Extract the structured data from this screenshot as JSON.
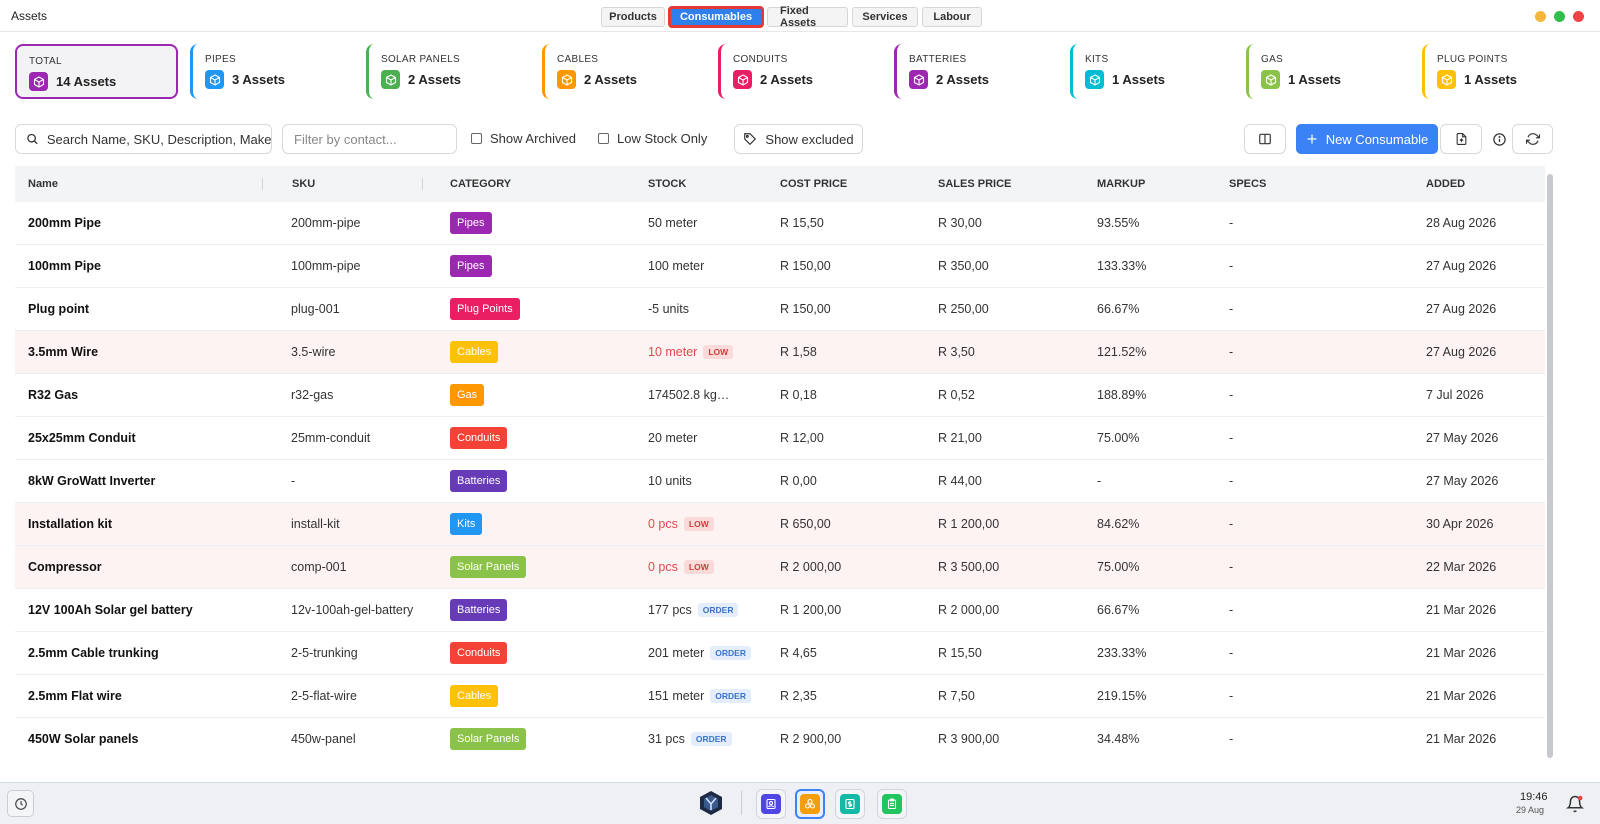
{
  "window": {
    "title": "Assets",
    "tabs": [
      {
        "label": "Products",
        "active": false
      },
      {
        "label": "Consumables",
        "active": true
      },
      {
        "label": "Fixed Assets",
        "active": false
      },
      {
        "label": "Services",
        "active": false
      },
      {
        "label": "Labour",
        "active": false
      }
    ],
    "controls": {
      "minimize_color": "#f5b73b",
      "maximize_color": "#2fbf4a",
      "close_color": "#ef4444"
    }
  },
  "summary_cards": [
    {
      "label": "TOTAL",
      "count": "14 Assets",
      "color": "#9c27b0"
    },
    {
      "label": "PIPES",
      "count": "3 Assets",
      "color": "#2196f3"
    },
    {
      "label": "SOLAR PANELS",
      "count": "2 Assets",
      "color": "#4caf50"
    },
    {
      "label": "CABLES",
      "count": "2 Assets",
      "color": "#ff9800"
    },
    {
      "label": "CONDUITS",
      "count": "2 Assets",
      "color": "#e91e63"
    },
    {
      "label": "BATTERIES",
      "count": "2 Assets",
      "color": "#9c27b0"
    },
    {
      "label": "KITS",
      "count": "1 Assets",
      "color": "#00bcd4"
    },
    {
      "label": "GAS",
      "count": "1 Assets",
      "color": "#8bc34a"
    },
    {
      "label": "PLUG POINTS",
      "count": "1 Assets",
      "color": "#ffc107"
    }
  ],
  "toolbar": {
    "search_placeholder": "Search Name, SKU, Description, Make, M",
    "contact_placeholder": "Filter by contact...",
    "show_archived_label": "Show Archived",
    "low_stock_label": "Low Stock Only",
    "show_excluded_label": "Show excluded",
    "new_button_label": "New Consumable",
    "accent_color": "#3b82f6"
  },
  "table": {
    "headers": [
      "Name",
      "SKU",
      "CATEGORY",
      "STOCK",
      "COST PRICE",
      "SALES PRICE",
      "MARKUP",
      "SPECS",
      "ADDED"
    ],
    "rows": [
      {
        "name": "200mm Pipe",
        "sku": "200mm-pipe",
        "category": "Pipes",
        "cat_color": "#9c27b0",
        "stock": "50 meter",
        "status": "",
        "low": false,
        "cost": "R 15,50",
        "sales": "R 30,00",
        "markup": "93.55%",
        "specs": "-",
        "added": "28 Aug 2026"
      },
      {
        "name": "100mm Pipe",
        "sku": "100mm-pipe",
        "category": "Pipes",
        "cat_color": "#9c27b0",
        "stock": "100 meter",
        "status": "",
        "low": false,
        "cost": "R 150,00",
        "sales": "R 350,00",
        "markup": "133.33%",
        "specs": "-",
        "added": "27 Aug 2026"
      },
      {
        "name": "Plug point",
        "sku": "plug-001",
        "category": "Plug Points",
        "cat_color": "#e91e63",
        "stock": "-5 units",
        "status": "",
        "low": false,
        "cost": "R 150,00",
        "sales": "R 250,00",
        "markup": "66.67%",
        "specs": "-",
        "added": "27 Aug 2026"
      },
      {
        "name": "3.5mm Wire",
        "sku": "3.5-wire",
        "category": "Cables",
        "cat_color": "#ffc107",
        "stock": "10 meter",
        "status": "LOW",
        "low": true,
        "cost": "R 1,58",
        "sales": "R 3,50",
        "markup": "121.52%",
        "specs": "-",
        "added": "27 Aug 2026"
      },
      {
        "name": "R32 Gas",
        "sku": "r32-gas",
        "category": "Gas",
        "cat_color": "#ff9800",
        "stock": "174502.8 kg…",
        "status": "",
        "low": false,
        "cost": "R 0,18",
        "sales": "R 0,52",
        "markup": "188.89%",
        "specs": "-",
        "added": "7 Jul 2026"
      },
      {
        "name": "25x25mm Conduit",
        "sku": "25mm-conduit",
        "category": "Conduits",
        "cat_color": "#f44336",
        "stock": "20 meter",
        "status": "",
        "low": false,
        "cost": "R 12,00",
        "sales": "R 21,00",
        "markup": "75.00%",
        "specs": "-",
        "added": "27 May 2026"
      },
      {
        "name": "8kW GroWatt Inverter",
        "sku": "-",
        "category": "Batteries",
        "cat_color": "#673ab7",
        "stock": "10 units",
        "status": "",
        "low": false,
        "cost": "R 0,00",
        "sales": "R 44,00",
        "markup": "-",
        "specs": "-",
        "added": "27 May 2026"
      },
      {
        "name": "Installation kit",
        "sku": "install-kit",
        "category": "Kits",
        "cat_color": "#2196f3",
        "stock": "0 pcs",
        "status": "LOW",
        "low": true,
        "cost": "R 650,00",
        "sales": "R 1 200,00",
        "markup": "84.62%",
        "specs": "-",
        "added": "30 Apr 2026"
      },
      {
        "name": "Compressor",
        "sku": "comp-001",
        "category": "Solar Panels",
        "cat_color": "#8bc34a",
        "stock": "0 pcs",
        "status": "LOW",
        "low": true,
        "cost": "R 2 000,00",
        "sales": "R 3 500,00",
        "markup": "75.00%",
        "specs": "-",
        "added": "22 Mar 2026"
      },
      {
        "name": "12V 100Ah Solar gel battery",
        "sku": "12v-100ah-gel-battery",
        "category": "Batteries",
        "cat_color": "#673ab7",
        "stock": "177 pcs",
        "status": "ORDER",
        "low": false,
        "cost": "R 1 200,00",
        "sales": "R 2 000,00",
        "markup": "66.67%",
        "specs": "-",
        "added": "21 Mar 2026"
      },
      {
        "name": "2.5mm Cable trunking",
        "sku": "2-5-trunking",
        "category": "Conduits",
        "cat_color": "#f44336",
        "stock": "201 meter",
        "status": "ORDER",
        "low": false,
        "cost": "R 4,65",
        "sales": "R 15,50",
        "markup": "233.33%",
        "specs": "-",
        "added": "21 Mar 2026"
      },
      {
        "name": "2.5mm Flat wire",
        "sku": "2-5-flat-wire",
        "category": "Cables",
        "cat_color": "#ffc107",
        "stock": "151 meter",
        "status": "ORDER",
        "low": false,
        "cost": "R 2,35",
        "sales": "R 7,50",
        "markup": "219.15%",
        "specs": "-",
        "added": "21 Mar 2026"
      },
      {
        "name": "450W Solar panels",
        "sku": "450w-panel",
        "category": "Solar Panels",
        "cat_color": "#8bc34a",
        "stock": "31 pcs",
        "status": "ORDER",
        "low": false,
        "cost": "R 2 900,00",
        "sales": "R 3 900,00",
        "markup": "34.48%",
        "specs": "-",
        "added": "21 Mar 2026"
      }
    ]
  },
  "taskbar": {
    "time": "19:46",
    "date": "29 Aug",
    "apps": [
      {
        "icon": "contacts-icon",
        "color": "#4f46e5",
        "active": false
      },
      {
        "icon": "assets-icon",
        "color": "#f59e0b",
        "active": true
      },
      {
        "icon": "invoice-icon",
        "color": "#14b8a6",
        "active": false
      },
      {
        "icon": "clipboard-icon",
        "color": "#22c55e",
        "active": false
      }
    ]
  }
}
